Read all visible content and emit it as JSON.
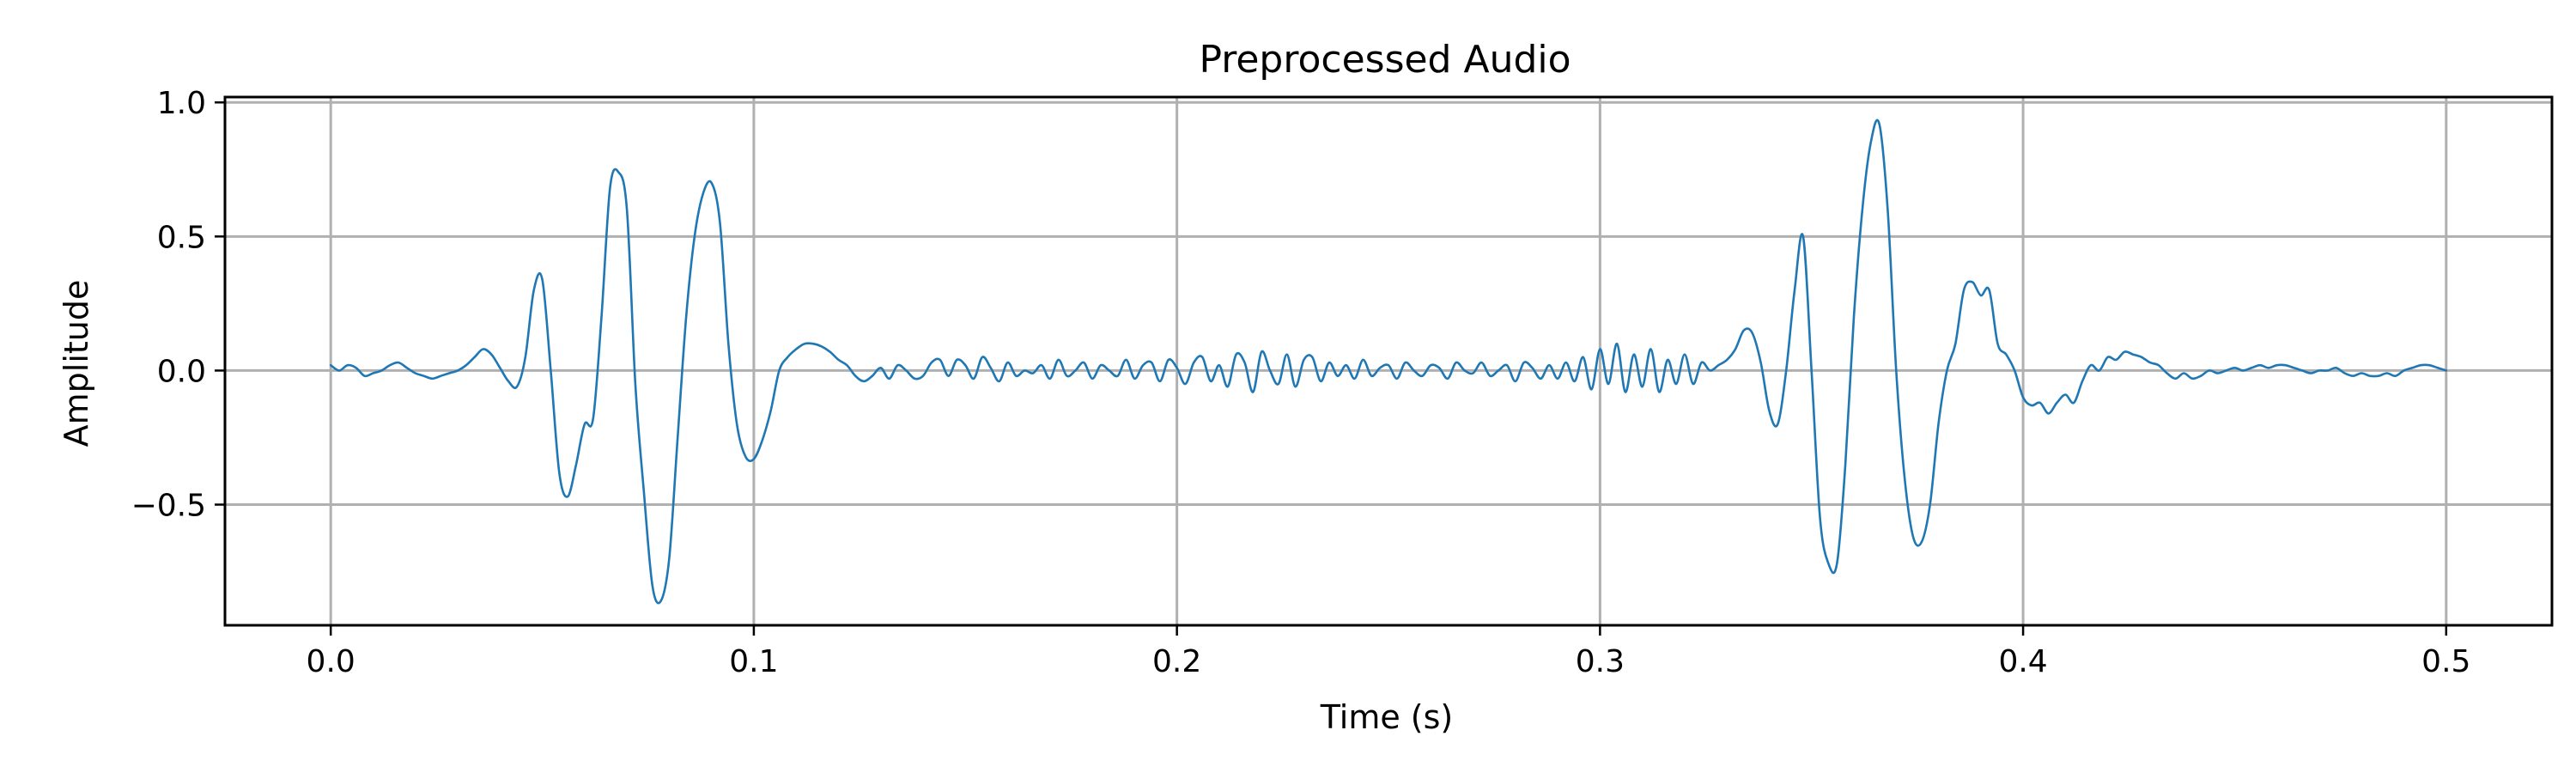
{
  "chart_data": {
    "type": "line",
    "title": "Preprocessed Audio",
    "xlabel": "Time (s)",
    "ylabel": "Amplitude",
    "xlim": [
      -0.025,
      0.525
    ],
    "ylim": [
      -0.95,
      1.02
    ],
    "xticks": [
      {
        "value": 0.0,
        "label": "0.0"
      },
      {
        "value": 0.1,
        "label": "0.1"
      },
      {
        "value": 0.2,
        "label": "0.2"
      },
      {
        "value": 0.3,
        "label": "0.3"
      },
      {
        "value": 0.4,
        "label": "0.4"
      },
      {
        "value": 0.5,
        "label": "0.5"
      }
    ],
    "yticks": [
      {
        "value": -0.5,
        "label": "−0.5"
      },
      {
        "value": 0.0,
        "label": "0.0"
      },
      {
        "value": 0.5,
        "label": "0.5"
      },
      {
        "value": 1.0,
        "label": "1.0"
      }
    ],
    "grid": true,
    "legend": false,
    "series": [
      {
        "color": "#1f77b4",
        "x": [
          0.0,
          0.002,
          0.004,
          0.006,
          0.008,
          0.01,
          0.012,
          0.014,
          0.016,
          0.018,
          0.02,
          0.022,
          0.024,
          0.026,
          0.028,
          0.03,
          0.032,
          0.034,
          0.036,
          0.038,
          0.04,
          0.042,
          0.044,
          0.046,
          0.048,
          0.05,
          0.052,
          0.054,
          0.056,
          0.058,
          0.06,
          0.062,
          0.064,
          0.066,
          0.068,
          0.07,
          0.072,
          0.074,
          0.076,
          0.078,
          0.08,
          0.082,
          0.084,
          0.086,
          0.088,
          0.09,
          0.092,
          0.094,
          0.096,
          0.098,
          0.1,
          0.102,
          0.104,
          0.106,
          0.108,
          0.11,
          0.112,
          0.114,
          0.116,
          0.118,
          0.12,
          0.122,
          0.124,
          0.126,
          0.128,
          0.13,
          0.132,
          0.134,
          0.136,
          0.138,
          0.14,
          0.142,
          0.144,
          0.146,
          0.148,
          0.15,
          0.152,
          0.154,
          0.156,
          0.158,
          0.16,
          0.162,
          0.164,
          0.166,
          0.168,
          0.17,
          0.172,
          0.174,
          0.176,
          0.178,
          0.18,
          0.182,
          0.184,
          0.186,
          0.188,
          0.19,
          0.192,
          0.194,
          0.196,
          0.198,
          0.2,
          0.202,
          0.204,
          0.206,
          0.208,
          0.21,
          0.212,
          0.214,
          0.216,
          0.218,
          0.22,
          0.222,
          0.224,
          0.226,
          0.228,
          0.23,
          0.232,
          0.234,
          0.236,
          0.238,
          0.24,
          0.242,
          0.244,
          0.246,
          0.248,
          0.25,
          0.252,
          0.254,
          0.256,
          0.258,
          0.26,
          0.262,
          0.264,
          0.266,
          0.268,
          0.27,
          0.272,
          0.274,
          0.276,
          0.278,
          0.28,
          0.282,
          0.284,
          0.286,
          0.288,
          0.29,
          0.292,
          0.294,
          0.296,
          0.298,
          0.3,
          0.302,
          0.304,
          0.306,
          0.308,
          0.31,
          0.312,
          0.314,
          0.316,
          0.318,
          0.32,
          0.322,
          0.324,
          0.326,
          0.328,
          0.33,
          0.332,
          0.334,
          0.336,
          0.338,
          0.34,
          0.342,
          0.344,
          0.346,
          0.348,
          0.35,
          0.352,
          0.354,
          0.356,
          0.358,
          0.36,
          0.362,
          0.364,
          0.366,
          0.368,
          0.37,
          0.372,
          0.374,
          0.376,
          0.378,
          0.38,
          0.382,
          0.384,
          0.386,
          0.388,
          0.39,
          0.392,
          0.394,
          0.396,
          0.398,
          0.4,
          0.402,
          0.404,
          0.406,
          0.408,
          0.41,
          0.412,
          0.414,
          0.416,
          0.418,
          0.42,
          0.422,
          0.424,
          0.426,
          0.428,
          0.43,
          0.432,
          0.434,
          0.436,
          0.438,
          0.44,
          0.442,
          0.444,
          0.446,
          0.448,
          0.45,
          0.452,
          0.454,
          0.456,
          0.458,
          0.46,
          0.462,
          0.464,
          0.466,
          0.468,
          0.47,
          0.472,
          0.474,
          0.476,
          0.478,
          0.48,
          0.482,
          0.484,
          0.486,
          0.488,
          0.49,
          0.492,
          0.494,
          0.496,
          0.498,
          0.5
        ],
        "y": [
          0.02,
          0.0,
          0.02,
          0.01,
          -0.02,
          -0.01,
          0.0,
          0.02,
          0.03,
          0.01,
          -0.01,
          -0.02,
          -0.03,
          -0.02,
          -0.01,
          0.0,
          0.02,
          0.05,
          0.08,
          0.06,
          0.01,
          -0.04,
          -0.06,
          0.05,
          0.3,
          0.34,
          0.0,
          -0.38,
          -0.47,
          -0.35,
          -0.2,
          -0.18,
          0.2,
          0.68,
          0.74,
          0.6,
          -0.05,
          -0.45,
          -0.8,
          -0.86,
          -0.7,
          -0.25,
          0.2,
          0.5,
          0.66,
          0.7,
          0.55,
          0.1,
          -0.2,
          -0.32,
          -0.33,
          -0.26,
          -0.15,
          0.0,
          0.05,
          0.08,
          0.1,
          0.1,
          0.09,
          0.07,
          0.04,
          0.02,
          -0.02,
          -0.04,
          -0.02,
          0.01,
          -0.03,
          0.02,
          0.0,
          -0.03,
          -0.02,
          0.03,
          0.04,
          -0.02,
          0.04,
          0.02,
          -0.03,
          0.05,
          0.01,
          -0.04,
          0.03,
          -0.02,
          0.0,
          -0.01,
          0.02,
          -0.03,
          0.04,
          -0.02,
          0.0,
          0.03,
          -0.03,
          0.02,
          0.0,
          -0.02,
          0.04,
          -0.03,
          0.02,
          0.03,
          -0.04,
          0.04,
          0.01,
          -0.05,
          0.03,
          0.05,
          -0.04,
          0.02,
          -0.06,
          0.06,
          0.03,
          -0.08,
          0.07,
          0.0,
          -0.05,
          0.06,
          -0.06,
          0.04,
          0.05,
          -0.04,
          0.03,
          -0.02,
          0.02,
          -0.03,
          0.04,
          -0.02,
          0.01,
          0.02,
          -0.03,
          0.03,
          0.0,
          -0.02,
          0.02,
          0.01,
          -0.03,
          0.03,
          0.0,
          -0.01,
          0.03,
          -0.02,
          0.0,
          0.02,
          -0.04,
          0.03,
          0.01,
          -0.03,
          0.02,
          -0.03,
          0.03,
          -0.04,
          0.05,
          -0.07,
          0.08,
          -0.05,
          0.1,
          -0.08,
          0.06,
          -0.06,
          0.08,
          -0.08,
          0.04,
          -0.05,
          0.06,
          -0.05,
          0.03,
          0.0,
          0.02,
          0.04,
          0.08,
          0.15,
          0.14,
          0.03,
          -0.15,
          -0.2,
          0.0,
          0.3,
          0.5,
          0.0,
          -0.55,
          -0.72,
          -0.72,
          -0.35,
          0.2,
          0.6,
          0.85,
          0.92,
          0.6,
          0.0,
          -0.4,
          -0.62,
          -0.64,
          -0.5,
          -0.2,
          0.0,
          0.1,
          0.3,
          0.33,
          0.28,
          0.3,
          0.1,
          0.06,
          0.0,
          -0.1,
          -0.13,
          -0.12,
          -0.16,
          -0.12,
          -0.09,
          -0.12,
          -0.04,
          0.02,
          0.0,
          0.05,
          0.04,
          0.07,
          0.06,
          0.05,
          0.03,
          0.02,
          -0.01,
          -0.03,
          -0.01,
          -0.03,
          -0.02,
          0.0,
          -0.01,
          0.0,
          0.01,
          0.0,
          0.01,
          0.02,
          0.01,
          0.02,
          0.02,
          0.01,
          0.0,
          -0.01,
          0.0,
          0.0,
          0.01,
          -0.01,
          -0.02,
          -0.01,
          -0.02,
          -0.02,
          -0.01,
          -0.02,
          0.0,
          0.01,
          0.02,
          0.02,
          0.01,
          0.0
        ]
      }
    ]
  }
}
